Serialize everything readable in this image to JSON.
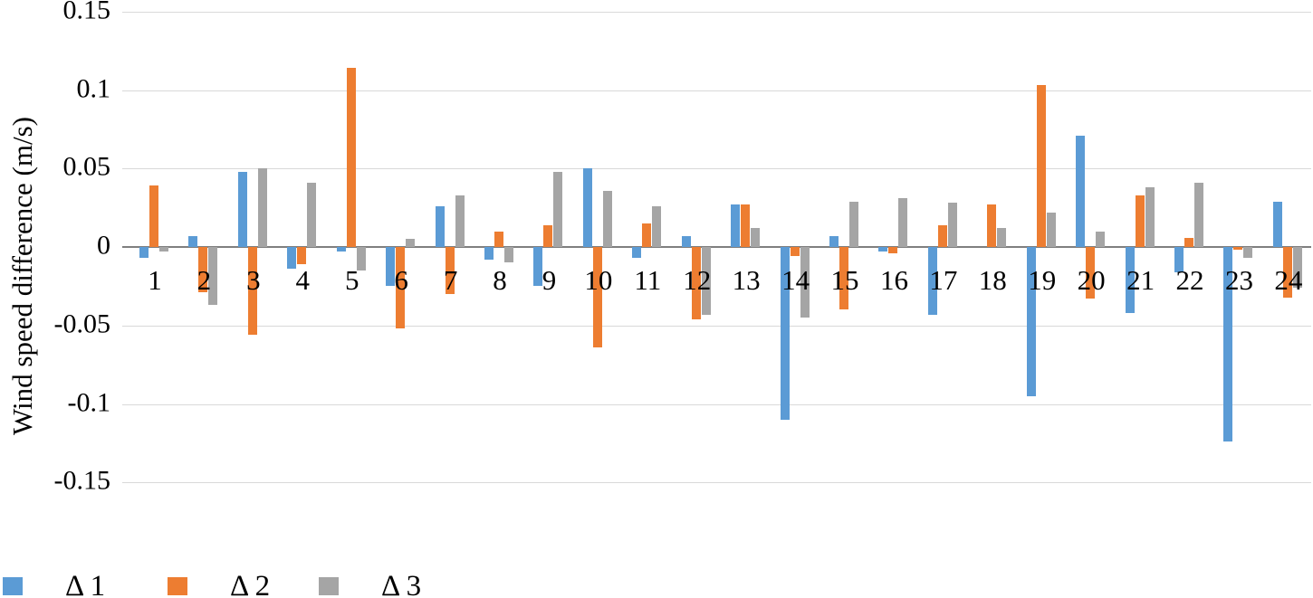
{
  "chart_data": {
    "type": "bar",
    "title": "",
    "xlabel": "",
    "ylabel": "Wind speed difference (m/s)",
    "categories": [
      "1",
      "2",
      "3",
      "4",
      "5",
      "6",
      "7",
      "8",
      "9",
      "10",
      "11",
      "12",
      "13",
      "14",
      "15",
      "16",
      "17",
      "18",
      "19",
      "20",
      "21",
      "22",
      "23",
      "24"
    ],
    "series": [
      {
        "name": "Δ 1",
        "color": "#5B9BD5",
        "values": [
          -0.007,
          0.007,
          0.048,
          -0.014,
          -0.003,
          -0.025,
          0.026,
          -0.008,
          -0.025,
          0.05,
          -0.007,
          0.007,
          0.027,
          -0.11,
          0.007,
          -0.003,
          -0.043,
          0.0,
          -0.095,
          0.071,
          -0.042,
          -0.016,
          -0.124,
          0.029
        ]
      },
      {
        "name": "Δ 2",
        "color": "#ED7D31",
        "values": [
          0.039,
          -0.029,
          -0.056,
          -0.011,
          0.114,
          -0.052,
          -0.03,
          0.01,
          0.014,
          -0.064,
          0.015,
          -0.046,
          0.027,
          -0.006,
          -0.04,
          -0.004,
          0.014,
          0.027,
          0.103,
          -0.033,
          0.033,
          0.006,
          -0.002,
          -0.032
        ]
      },
      {
        "name": "Δ 3",
        "color": "#A5A5A5",
        "values": [
          -0.003,
          -0.037,
          0.05,
          0.041,
          -0.015,
          0.005,
          0.033,
          -0.01,
          0.048,
          0.036,
          0.026,
          -0.043,
          0.012,
          -0.045,
          0.029,
          0.031,
          0.028,
          0.012,
          0.022,
          0.01,
          0.038,
          0.041,
          -0.007,
          -0.026
        ]
      }
    ],
    "ylim": [
      -0.15,
      0.15
    ],
    "yticks": [
      0.15,
      0.1,
      0.05,
      0,
      -0.05,
      -0.1,
      -0.15
    ],
    "ytick_labels": [
      "0.15",
      "0.1",
      "0.05",
      "0",
      "-0.05",
      "-0.1",
      "-0.15"
    ],
    "grid": true,
    "gridline_color": "#D9D9D9",
    "axis_line_color": "#7F7F7F",
    "legend_position": "bottom-left"
  }
}
